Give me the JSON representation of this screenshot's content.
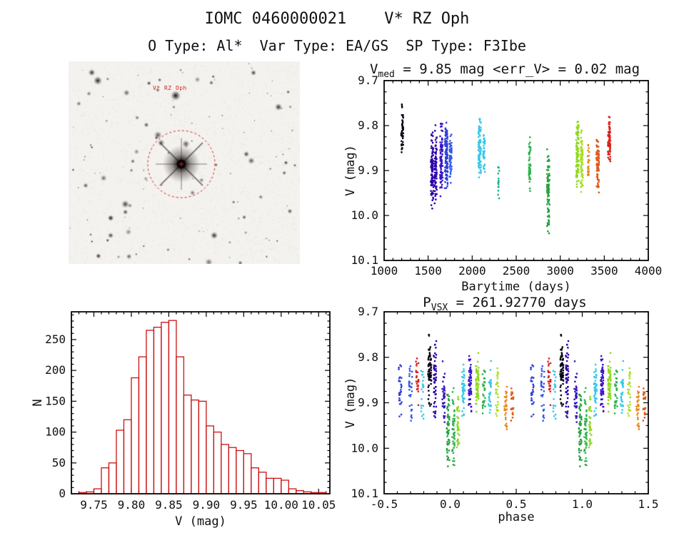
{
  "header": {
    "title": "IOMC 0460000021    V* RZ Oph",
    "subtitle": "O Type: Al*  Var Type: EA/GS  SP Type: F3Ibe"
  },
  "finding_chart": {
    "target_label": "V* RZ Oph",
    "marker_color": "#cc2222"
  },
  "chart_data": [
    {
      "id": "light_curve",
      "type": "scatter",
      "title_pre": "V",
      "title_sub": "med",
      "title_post": " = 9.85 mag <err_V> = 0.02 mag",
      "xlabel": "Barytime (days)",
      "ylabel": "V (mag)",
      "xlim": [
        1000,
        4000
      ],
      "ylim": [
        9.7,
        10.1
      ],
      "y_inverted": true,
      "xticks": [
        1000,
        1500,
        2000,
        2500,
        3000,
        3500,
        4000
      ],
      "yticks": [
        9.7,
        9.8,
        9.9,
        10.0,
        10.1
      ],
      "xdec": 0,
      "ydec": 1,
      "x_minor": 100,
      "y_minor": 0.025,
      "clusters": [
        {
          "x": 1205,
          "w": 25,
          "vmin": 9.745,
          "vmax": 9.875,
          "n": 45,
          "color": "#0a0514"
        },
        {
          "x": 1545,
          "w": 30,
          "vmin": 9.8,
          "vmax": 9.99,
          "n": 90,
          "color": "#2c00a8"
        },
        {
          "x": 1585,
          "w": 25,
          "vmin": 9.79,
          "vmax": 10.0,
          "n": 70,
          "color": "#2c00a8"
        },
        {
          "x": 1650,
          "w": 30,
          "vmin": 9.78,
          "vmax": 9.96,
          "n": 90,
          "color": "#3b14c8"
        },
        {
          "x": 1705,
          "w": 35,
          "vmin": 9.785,
          "vmax": 9.95,
          "n": 110,
          "color": "#2f3fd4"
        },
        {
          "x": 1755,
          "w": 25,
          "vmin": 9.8,
          "vmax": 9.93,
          "n": 60,
          "color": "#3558e8"
        },
        {
          "x": 2085,
          "w": 30,
          "vmin": 9.775,
          "vmax": 9.93,
          "n": 80,
          "color": "#35c8e8"
        },
        {
          "x": 2135,
          "w": 20,
          "vmin": 9.8,
          "vmax": 9.92,
          "n": 40,
          "color": "#35c8e8"
        },
        {
          "x": 2300,
          "w": 18,
          "vmin": 9.88,
          "vmax": 9.97,
          "n": 14,
          "color": "#18b090"
        },
        {
          "x": 2655,
          "w": 22,
          "vmin": 9.815,
          "vmax": 9.955,
          "n": 55,
          "color": "#2eb34c"
        },
        {
          "x": 2865,
          "w": 30,
          "vmin": 9.84,
          "vmax": 10.045,
          "n": 85,
          "color": "#26a23e"
        },
        {
          "x": 3195,
          "w": 30,
          "vmin": 9.775,
          "vmax": 9.95,
          "n": 95,
          "color": "#8fd822"
        },
        {
          "x": 3245,
          "w": 25,
          "vmin": 9.8,
          "vmax": 9.95,
          "n": 70,
          "color": "#a8e01e"
        },
        {
          "x": 3320,
          "w": 18,
          "vmin": 9.835,
          "vmax": 9.93,
          "n": 25,
          "color": "#e8881c"
        },
        {
          "x": 3425,
          "w": 30,
          "vmin": 9.82,
          "vmax": 9.955,
          "n": 75,
          "color": "#e05a1a"
        },
        {
          "x": 3555,
          "w": 28,
          "vmin": 9.775,
          "vmax": 9.89,
          "n": 70,
          "color": "#d9231a"
        }
      ]
    },
    {
      "id": "histogram",
      "type": "histogram",
      "xlabel": "V (mag)",
      "ylabel": "N",
      "color": "#cc1111",
      "xlim": [
        9.72,
        10.065
      ],
      "ylim": [
        0,
        295
      ],
      "y_inverted": false,
      "xticks": [
        9.75,
        9.8,
        9.85,
        9.9,
        9.95,
        10.0,
        10.05
      ],
      "yticks": [
        0,
        50,
        100,
        150,
        200,
        250
      ],
      "xdec": 2,
      "ydec": 0,
      "x_minor": 0.01,
      "y_minor": 10,
      "bin_start": 9.73,
      "bin_width": 0.01,
      "counts": [
        2,
        3,
        8,
        42,
        50,
        103,
        120,
        188,
        222,
        265,
        270,
        278,
        281,
        222,
        160,
        152,
        150,
        110,
        100,
        80,
        75,
        70,
        65,
        42,
        35,
        25,
        25,
        22,
        8,
        5,
        3,
        2,
        2
      ]
    },
    {
      "id": "phase_plot",
      "type": "scatter",
      "title_pre": "P",
      "title_sub": "VSX",
      "title_post": " = 261.92770 days",
      "xlabel": "phase",
      "ylabel": "V (mag)",
      "xlim": [
        -0.5,
        1.5
      ],
      "ylim": [
        9.7,
        10.1
      ],
      "y_inverted": true,
      "xticks": [
        -0.5,
        0.0,
        0.5,
        1.0,
        1.5
      ],
      "yticks": [
        9.7,
        9.8,
        9.9,
        10.0,
        10.1
      ],
      "xdec": 1,
      "ydec": 1,
      "x_minor": 0.1,
      "y_minor": 0.025,
      "fold_offsets": [
        0,
        1
      ],
      "clusters": [
        {
          "x": -0.38,
          "w": 0.025,
          "vmin": 9.8,
          "vmax": 9.935,
          "n": 28,
          "color": "#2f3fd4"
        },
        {
          "x": -0.3,
          "w": 0.025,
          "vmin": 9.8,
          "vmax": 9.95,
          "n": 32,
          "color": "#3558e8"
        },
        {
          "x": -0.25,
          "w": 0.02,
          "vmin": 9.795,
          "vmax": 9.92,
          "n": 28,
          "color": "#d9231a"
        },
        {
          "x": -0.21,
          "w": 0.02,
          "vmin": 9.82,
          "vmax": 9.94,
          "n": 22,
          "color": "#35c8e8"
        },
        {
          "x": -0.155,
          "w": 0.025,
          "vmin": 9.735,
          "vmax": 9.92,
          "n": 65,
          "color": "#0a0514"
        },
        {
          "x": -0.115,
          "w": 0.02,
          "vmin": 9.76,
          "vmax": 9.945,
          "n": 55,
          "color": "#2c00a8"
        },
        {
          "x": -0.05,
          "w": 0.02,
          "vmin": 9.8,
          "vmax": 9.985,
          "n": 38,
          "color": "#3b14c8"
        },
        {
          "x": -0.015,
          "w": 0.02,
          "vmin": 9.845,
          "vmax": 10.055,
          "n": 55,
          "color": "#26a23e"
        },
        {
          "x": 0.025,
          "w": 0.02,
          "vmin": 9.86,
          "vmax": 10.05,
          "n": 50,
          "color": "#2eb34c"
        },
        {
          "x": 0.06,
          "w": 0.02,
          "vmin": 9.875,
          "vmax": 10.02,
          "n": 35,
          "color": "#8fd822"
        },
        {
          "x": 0.1,
          "w": 0.022,
          "vmin": 9.8,
          "vmax": 9.95,
          "n": 42,
          "color": "#35c8e8"
        },
        {
          "x": 0.15,
          "w": 0.022,
          "vmin": 9.78,
          "vmax": 9.935,
          "n": 55,
          "color": "#3b14c8"
        },
        {
          "x": 0.205,
          "w": 0.022,
          "vmin": 9.775,
          "vmax": 9.935,
          "n": 55,
          "color": "#8fd822"
        },
        {
          "x": 0.255,
          "w": 0.02,
          "vmin": 9.8,
          "vmax": 9.94,
          "n": 32,
          "color": "#2eb34c"
        },
        {
          "x": 0.3,
          "w": 0.02,
          "vmin": 9.8,
          "vmax": 9.93,
          "n": 32,
          "color": "#35c8e8"
        },
        {
          "x": 0.355,
          "w": 0.02,
          "vmin": 9.8,
          "vmax": 9.94,
          "n": 28,
          "color": "#a8e01e"
        },
        {
          "x": 0.42,
          "w": 0.02,
          "vmin": 9.845,
          "vmax": 9.975,
          "n": 32,
          "color": "#e8881c"
        },
        {
          "x": 0.47,
          "w": 0.02,
          "vmin": 9.85,
          "vmax": 9.95,
          "n": 22,
          "color": "#e05a1a"
        }
      ]
    }
  ]
}
